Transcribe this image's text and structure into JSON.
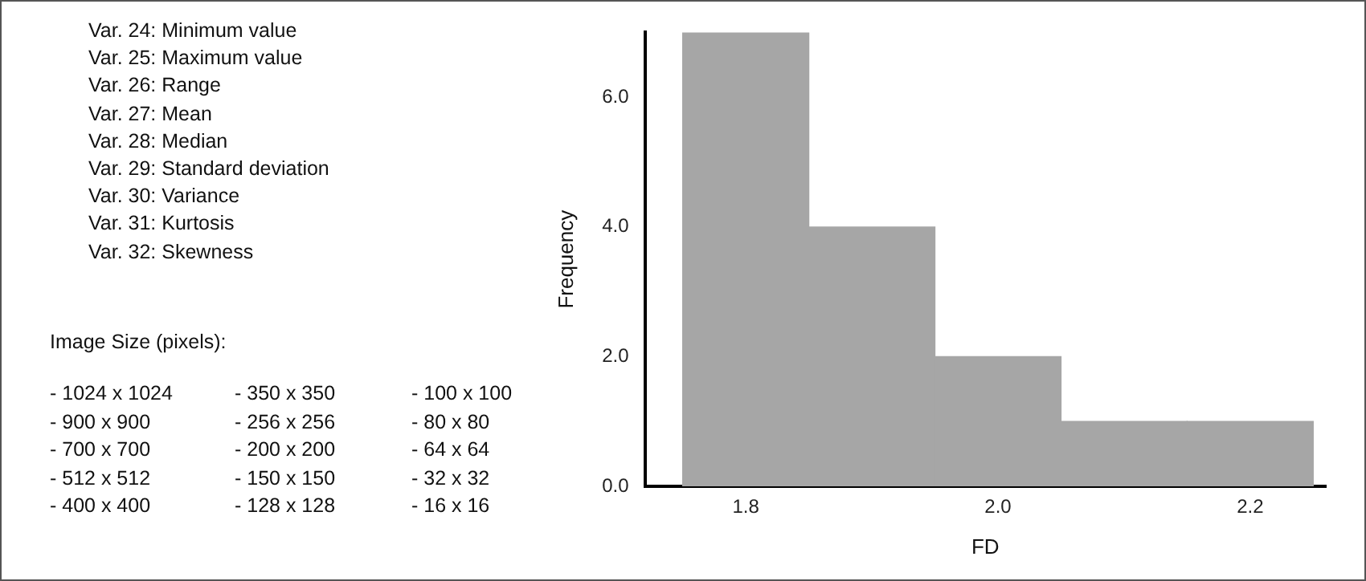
{
  "chart_data": [
    {
      "type": "other",
      "annotations": [
        "Var. 24: Minimum value",
        "Var. 25: Maximum value",
        "Var. 26: Range",
        "Var. 27: Mean",
        "Var. 28: Median",
        "Var. 29: Standard deviation",
        "Var. 30: Variance",
        "Var. 31: Kurtosis",
        "Var. 32: Skewness"
      ]
    },
    {
      "type": "other",
      "title": "Image Size (pixels):",
      "annotations": [
        "- 1024 x 1024",
        "- 900 x 900",
        "- 700 x 700",
        "- 512 x 512",
        "- 400 x 400",
        "- 350 x 350",
        "- 256 x 256",
        "- 200 x 200",
        "- 150 x 150",
        "- 128 x 128",
        "- 100 x 100",
        "- 80 x 80",
        "- 64 x 64",
        "- 32 x 32",
        "- 16 x 16"
      ]
    },
    {
      "type": "histogram",
      "xlabel": "FD",
      "ylabel": "Frequency",
      "bins": [
        1.75,
        1.85,
        1.95,
        2.05,
        2.15,
        2.25
      ],
      "values": [
        7,
        4,
        2,
        1,
        1
      ],
      "color": "#a6a6a6",
      "xlim": [
        1.72,
        2.26
      ],
      "xticks": [
        {
          "value": 1.8,
          "label": "1.8"
        },
        {
          "value": 2.0,
          "label": "2.0"
        },
        {
          "value": 2.2,
          "label": "2.2"
        }
      ],
      "ylim": [
        0,
        7
      ],
      "yticks": [
        {
          "value": 0,
          "label": "0.0"
        },
        {
          "value": 2,
          "label": "2.0"
        },
        {
          "value": 4,
          "label": "4.0"
        },
        {
          "value": 6,
          "label": "6.0"
        }
      ],
      "grid": false,
      "legend": false
    }
  ]
}
